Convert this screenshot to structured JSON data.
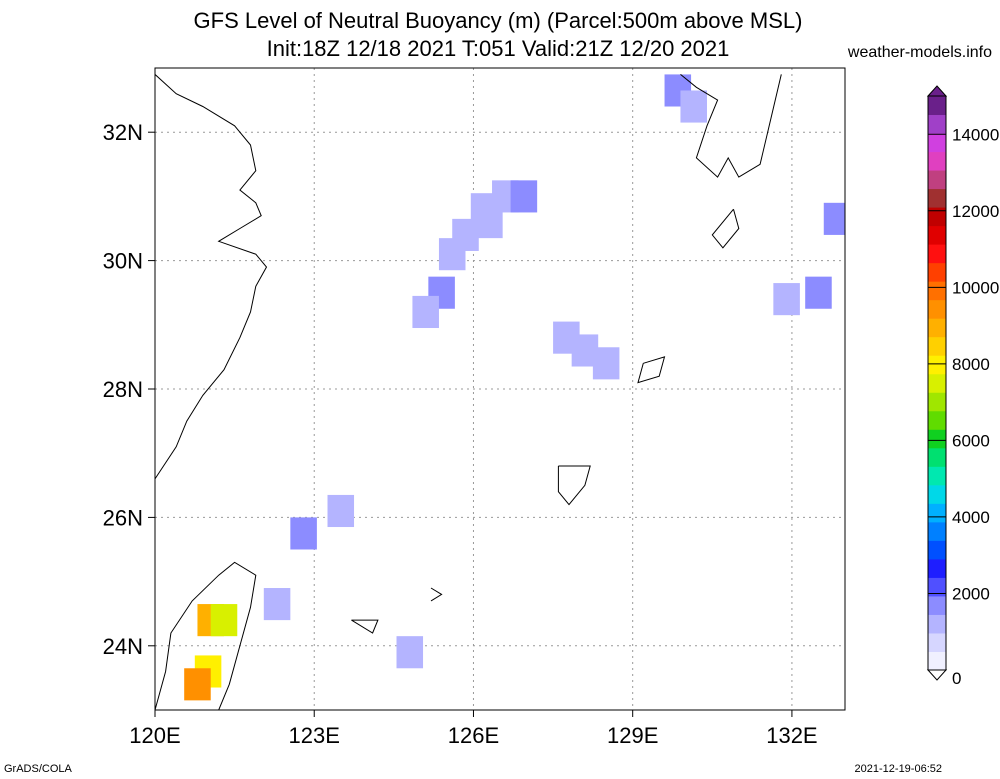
{
  "header": {
    "title_line1": "GFS Level of Neutral Buoyancy (m) (Parcel:500m above MSL)",
    "title_line2": "Init:18Z 12/18 2021 T:051 Valid:21Z 12/20 2021",
    "site": "weather-models.info"
  },
  "footer": {
    "left": "GrADS/COLA",
    "right": "2021-12-19-06:52"
  },
  "chart_data": {
    "type": "heatmap",
    "title": "GFS Level of Neutral Buoyancy (m) (Parcel:500m above MSL)",
    "subtitle": "Init:18Z 12/18 2021 T:051 Valid:21Z 12/20 2021",
    "xlim": [
      120,
      133
    ],
    "ylim": [
      23,
      33
    ],
    "x_ticks": [
      {
        "value": 120,
        "label": "120E"
      },
      {
        "value": 123,
        "label": "123E"
      },
      {
        "value": 126,
        "label": "126E"
      },
      {
        "value": 129,
        "label": "129E"
      },
      {
        "value": 132,
        "label": "132E"
      }
    ],
    "y_ticks": [
      {
        "value": 24,
        "label": "24N"
      },
      {
        "value": 26,
        "label": "26N"
      },
      {
        "value": 28,
        "label": "28N"
      },
      {
        "value": 30,
        "label": "30N"
      },
      {
        "value": 32,
        "label": "32N"
      }
    ],
    "grid": true,
    "colorbar": {
      "min": 0,
      "max": 15000,
      "ticks": [
        0,
        2000,
        4000,
        6000,
        8000,
        10000,
        12000,
        14000
      ],
      "tick_labels": [
        "0",
        "2000",
        "4000",
        "6000",
        "8000",
        "10000",
        "12000",
        "14000"
      ],
      "levels": [
        0,
        500,
        1000,
        1500,
        2000,
        2500,
        3000,
        3500,
        4000,
        4500,
        5000,
        5500,
        6000,
        6500,
        7000,
        7500,
        8000,
        8500,
        9000,
        9500,
        10000,
        10500,
        11000,
        11500,
        12000,
        12500,
        13000,
        13500,
        14000,
        14500,
        15000
      ],
      "colors": [
        "#f0f0ff",
        "#d6d6ff",
        "#b4b4ff",
        "#8c8cff",
        "#5050ff",
        "#1e1eff",
        "#0050ff",
        "#0080ff",
        "#00b0ff",
        "#00d8e8",
        "#00e8b0",
        "#00e070",
        "#10d020",
        "#60dc00",
        "#a0e600",
        "#d8f000",
        "#fff000",
        "#ffd000",
        "#ffb000",
        "#ff9000",
        "#ff7000",
        "#ff4000",
        "#ff1010",
        "#e00000",
        "#c00000",
        "#a03030",
        "#c04080",
        "#e040c0",
        "#d040e0",
        "#a040c8",
        "#6a208a"
      ]
    },
    "cells": [
      {
        "lon": 129.85,
        "lat": 32.65,
        "value": 1500
      },
      {
        "lon": 130.15,
        "lat": 32.4,
        "value": 1300
      },
      {
        "lon": 126.2,
        "lat": 30.8,
        "value": 1300
      },
      {
        "lon": 126.6,
        "lat": 31.0,
        "value": 1300
      },
      {
        "lon": 126.95,
        "lat": 31.0,
        "value": 1500
      },
      {
        "lon": 126.3,
        "lat": 30.6,
        "value": 1200
      },
      {
        "lon": 125.85,
        "lat": 30.4,
        "value": 1400
      },
      {
        "lon": 125.6,
        "lat": 30.1,
        "value": 1400
      },
      {
        "lon": 125.4,
        "lat": 29.5,
        "value": 1500
      },
      {
        "lon": 125.1,
        "lat": 29.2,
        "value": 1200
      },
      {
        "lon": 127.75,
        "lat": 28.8,
        "value": 1300
      },
      {
        "lon": 128.1,
        "lat": 28.6,
        "value": 1200
      },
      {
        "lon": 128.5,
        "lat": 28.4,
        "value": 1200
      },
      {
        "lon": 131.9,
        "lat": 29.4,
        "value": 1400
      },
      {
        "lon": 132.5,
        "lat": 29.5,
        "value": 1500
      },
      {
        "lon": 132.85,
        "lat": 30.65,
        "value": 1500
      },
      {
        "lon": 122.8,
        "lat": 25.75,
        "value": 1500
      },
      {
        "lon": 123.5,
        "lat": 26.1,
        "value": 1400
      },
      {
        "lon": 122.3,
        "lat": 24.65,
        "value": 1300
      },
      {
        "lon": 124.8,
        "lat": 23.9,
        "value": 1300
      },
      {
        "lon": 121.05,
        "lat": 24.4,
        "value": 9000
      },
      {
        "lon": 121.3,
        "lat": 24.4,
        "value": 7500
      },
      {
        "lon": 121.0,
        "lat": 23.6,
        "value": 8000
      },
      {
        "lon": 120.8,
        "lat": 23.4,
        "value": 9500
      }
    ]
  }
}
